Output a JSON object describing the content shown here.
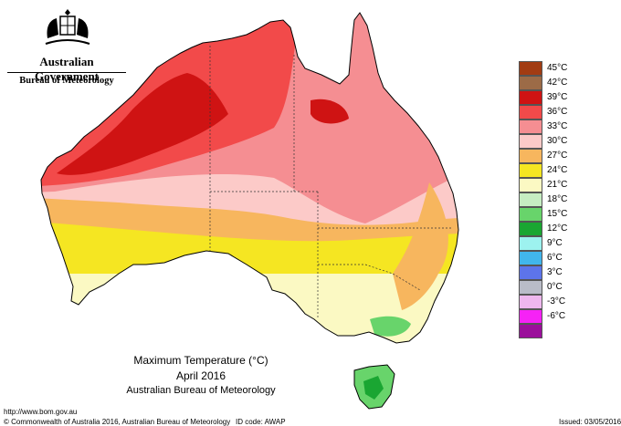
{
  "header": {
    "government": "Australian Government",
    "bureau": "Bureau of Meteorology"
  },
  "legend": [
    {
      "label": "45°C",
      "color": "#a23c13"
    },
    {
      "label": "42°C",
      "color": "#9c6b47"
    },
    {
      "label": "39°C",
      "color": "#cf1313"
    },
    {
      "label": "36°C",
      "color": "#f24a4a"
    },
    {
      "label": "33°C",
      "color": "#f58e92"
    },
    {
      "label": "30°C",
      "color": "#fccac8"
    },
    {
      "label": "27°C",
      "color": "#f7b65e"
    },
    {
      "label": "24°C",
      "color": "#f5e622"
    },
    {
      "label": "21°C",
      "color": "#fbf9c3"
    },
    {
      "label": "18°C",
      "color": "#c6edc2"
    },
    {
      "label": "15°C",
      "color": "#68d46b"
    },
    {
      "label": "12°C",
      "color": "#1aa632"
    },
    {
      "label": "9°C",
      "color": "#9df2ef"
    },
    {
      "label": "6°C",
      "color": "#41b6ec"
    },
    {
      "label": "3°C",
      "color": "#5d74ea"
    },
    {
      "label": "0°C",
      "color": "#b9bcc8"
    },
    {
      "label": "-3°C",
      "color": "#eeb7ee"
    },
    {
      "label": "-6°C",
      "color": "#f622f6"
    },
    {
      "label": "",
      "color": "#9b0f9b"
    }
  ],
  "caption": {
    "title": "Maximum Temperature (°C)",
    "period": "April 2016",
    "source": "Australian Bureau of Meteorology"
  },
  "footer": {
    "url": "http://www.bom.gov.au",
    "copyright": "© Commonwealth of Australia 2016, Australian Bureau of Meteorology",
    "id_code": "ID code: AWAP",
    "issued": "Issued: 03/05/2016"
  }
}
